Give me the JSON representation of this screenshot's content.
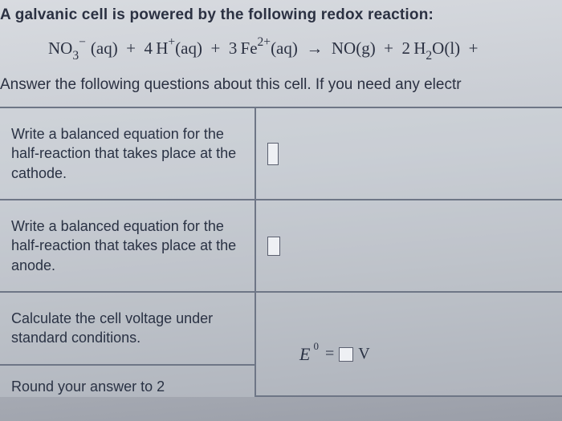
{
  "intro": "A galvanic cell is powered by the following redox reaction:",
  "equation": {
    "species": [
      {
        "pre_super": "",
        "formula": "NO",
        "sub": "3",
        "super": "−",
        "state": "(aq)"
      },
      {
        "coef": "4",
        "formula": "H",
        "super": "+",
        "state": "(aq)"
      },
      {
        "coef": "3",
        "formula": "Fe",
        "super": "2+",
        "state": "(aq)"
      },
      {
        "arrow": "→"
      },
      {
        "formula": "NO",
        "state": "(g)"
      },
      {
        "coef": "2",
        "formula": "H",
        "sub": "2",
        "then": "O",
        "state": "(l)"
      },
      {
        "trail": "+"
      }
    ]
  },
  "instruction": "Answer the following questions about this cell. If you need any electr",
  "rows": [
    {
      "prompt": "Write a balanced equation for the half-reaction that takes place at the cathode."
    },
    {
      "prompt": "Write a balanced equation for the half-reaction that takes place at the anode."
    },
    {
      "prompt": "Calculate the cell voltage under standard conditions."
    },
    {
      "prompt": "Round your answer to 2"
    }
  ],
  "ev": {
    "symbol": "E",
    "super": "0",
    "equals": "=",
    "unit": "V"
  }
}
